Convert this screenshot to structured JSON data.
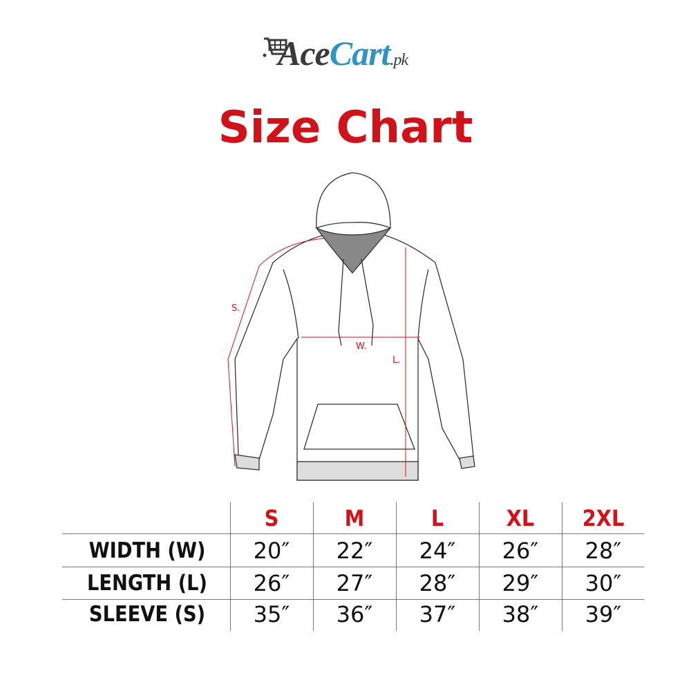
{
  "brand": {
    "name_part1": "Ace",
    "name_part2": "Cart",
    "suffix": ".pk",
    "icon": "shopping-cart-icon",
    "colors": {
      "dark": "#3a3a3a",
      "blue": "#2f93c4"
    }
  },
  "title": "Size Chart",
  "accent_color": "#d0121b",
  "diagram": {
    "sleeve_label": "S.",
    "width_label": "W.",
    "length_label": "L."
  },
  "table": {
    "sizes": [
      "S",
      "M",
      "L",
      "XL",
      "2XL"
    ],
    "rows": [
      {
        "label": "WIDTH (W)",
        "values": [
          "20″",
          "22″",
          "24″",
          "26″",
          "28″"
        ]
      },
      {
        "label": "LENGTH (L)",
        "values": [
          "26″",
          "27″",
          "28″",
          "29″",
          "30″"
        ]
      },
      {
        "label": "SLEEVE (S)",
        "values": [
          "35″",
          "36″",
          "37″",
          "38″",
          "39″"
        ]
      }
    ]
  }
}
